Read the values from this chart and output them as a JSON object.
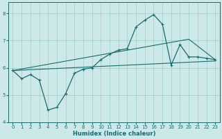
{
  "xlabel": "Humidex (Indice chaleur)",
  "xlim": [
    -0.5,
    23.5
  ],
  "ylim": [
    4,
    8.4
  ],
  "yticks": [
    4,
    5,
    6,
    7,
    8
  ],
  "xticks": [
    0,
    1,
    2,
    3,
    4,
    5,
    6,
    7,
    8,
    9,
    10,
    11,
    12,
    13,
    14,
    15,
    16,
    17,
    18,
    19,
    20,
    21,
    22,
    23
  ],
  "background_color": "#cce8e8",
  "grid_color": "#99cccc",
  "line_color": "#1a6b6b",
  "line1_x": [
    0,
    1,
    2,
    3,
    4,
    5,
    6,
    7,
    8,
    9,
    10,
    11,
    12,
    13,
    14,
    15,
    16,
    17,
    18,
    19,
    20,
    21,
    22,
    23
  ],
  "line1_y": [
    5.9,
    5.6,
    5.75,
    5.55,
    4.45,
    4.55,
    5.05,
    5.8,
    5.95,
    6.0,
    6.3,
    6.5,
    6.65,
    6.7,
    7.5,
    7.75,
    7.95,
    7.6,
    6.1,
    6.85,
    6.4,
    6.4,
    6.35,
    6.3
  ],
  "line2_x": [
    0,
    23
  ],
  "line2_y": [
    5.9,
    6.25
  ],
  "line3_x": [
    0,
    20,
    23
  ],
  "line3_y": [
    5.9,
    7.05,
    6.3
  ]
}
